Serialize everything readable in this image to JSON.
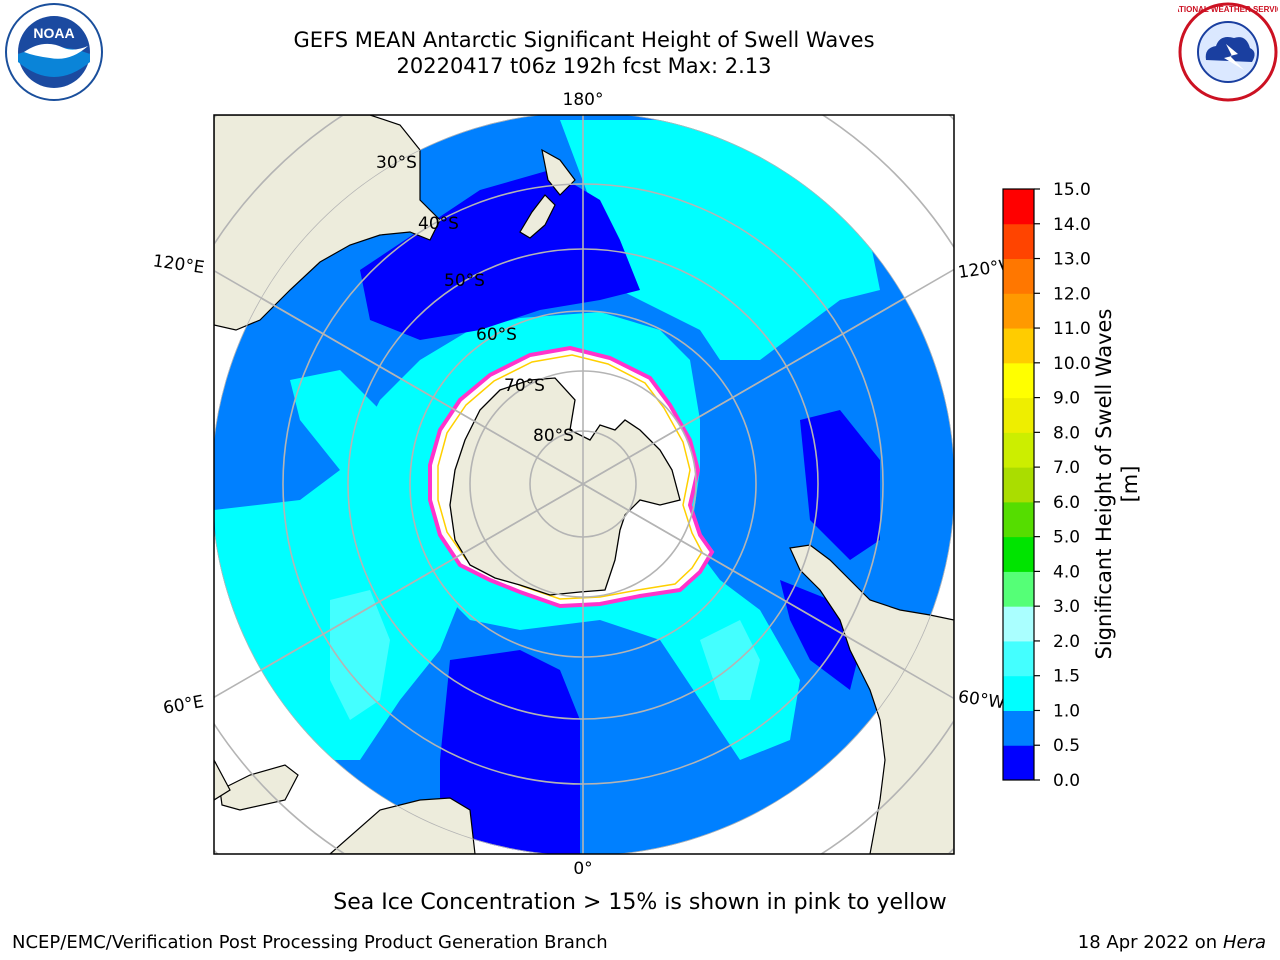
{
  "header": {
    "title_line1": "GEFS MEAN Antarctic Significant Height of Swell Waves",
    "title_line2": "20220417 t06z 192h fcst   Max: 2.13"
  },
  "logos": {
    "left": {
      "text": "NOAA",
      "icon": "noaa-seagull-logo"
    },
    "right": {
      "text": "NATIONAL WEATHER SERVICE",
      "icon": "nws-tornado-logo"
    }
  },
  "map": {
    "projection": "south-polar-stereographic",
    "longitude_labels": {
      "top": "180°",
      "bottom": "0°",
      "left_upper": "120°E",
      "left_lower": "60°E",
      "right_upper": "120°W",
      "right_lower": "60°W"
    },
    "latitude_labels": [
      "30°S",
      "40°S",
      "50°S",
      "60°S",
      "70°S",
      "80°S"
    ],
    "colors": {
      "land": "#edecdc",
      "ice_edge": "#ff33cc",
      "ice_edge_inner": "#ffd000",
      "gridline": "#b4b4b4",
      "wave_0_0.5": "#0000ff",
      "wave_0.5_1.0": "#0080ff",
      "wave_1.0_1.5": "#00ffff",
      "wave_1.5_2.0": "#44ffff",
      "wave_2.0_3.0": "#aaffff"
    }
  },
  "colorbar": {
    "label": "Significant Height of Swell Waves [m]",
    "ticks": [
      "0.0",
      "0.5",
      "1.0",
      "1.5",
      "2.0",
      "3.0",
      "4.0",
      "5.0",
      "6.0",
      "7.0",
      "8.0",
      "9.0",
      "10.0",
      "11.0",
      "12.0",
      "13.0",
      "14.0",
      "15.0"
    ],
    "colors": [
      "#0000ff",
      "#0080ff",
      "#00ffff",
      "#44ffff",
      "#aaffff",
      "#55ff77",
      "#00e400",
      "#55dd00",
      "#aadd00",
      "#ccee00",
      "#eeee00",
      "#ffff00",
      "#ffcc00",
      "#ff9900",
      "#ff7700",
      "#ff4400",
      "#ff0000"
    ]
  },
  "footer": {
    "note": "Sea Ice Concentration > 15% is shown in pink to yellow",
    "credit": "NCEP/EMC/Verification Post Processing Product Generation Branch",
    "date_prefix": "18 Apr 2022 on ",
    "host": "Hera"
  }
}
